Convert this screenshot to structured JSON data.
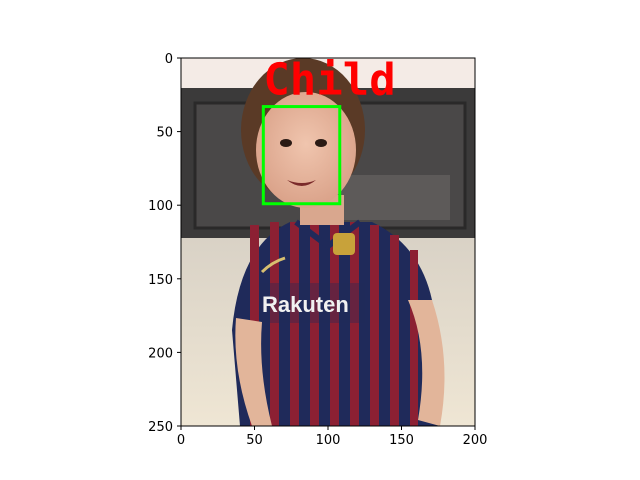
{
  "chart_data": {
    "type": "image",
    "title": "",
    "xlabel": "",
    "ylabel": "",
    "xlim": [
      0,
      200
    ],
    "ylim": [
      250,
      0
    ],
    "xticks": [
      0,
      50,
      100,
      150,
      200
    ],
    "yticks": [
      0,
      50,
      100,
      150,
      200,
      250
    ],
    "detection": {
      "label": "Child",
      "box": {
        "x1": 56,
        "y1": 33,
        "x2": 108,
        "y2": 99
      },
      "box_color": "#00ff00",
      "label_color": "#ff0000"
    },
    "image_description_colors": {
      "wall": "#3b3a3a",
      "ceiling": "#f4ebe6",
      "floor": "#e8dcc8",
      "jersey_blue": "#1f2a5a",
      "jersey_red": "#8c2033",
      "skin": "#e4b49c",
      "hair": "#5a3a26"
    }
  }
}
